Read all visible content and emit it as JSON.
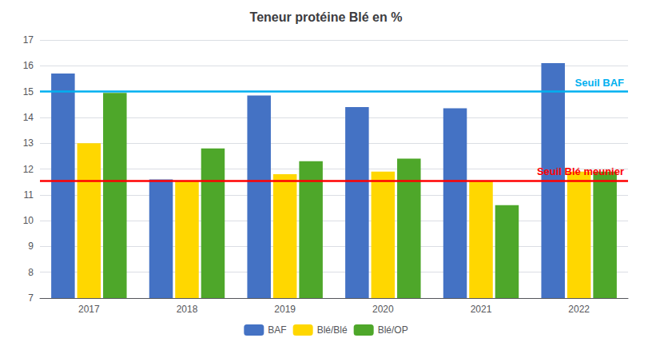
{
  "chart_data": {
    "type": "bar",
    "title": "Teneur protéine Blé en %",
    "categories": [
      "2017",
      "2018",
      "2019",
      "2020",
      "2021",
      "2022"
    ],
    "series": [
      {
        "name": "BAF",
        "color": "#4472C4",
        "values": [
          15.7,
          11.6,
          14.85,
          14.4,
          14.35,
          16.1
        ]
      },
      {
        "name": "Blé/Blé",
        "color": "#FFD700",
        "values": [
          13.0,
          11.55,
          11.8,
          11.9,
          11.55,
          11.9
        ]
      },
      {
        "name": "Blé/OP",
        "color": "#4EA72A",
        "values": [
          14.95,
          12.8,
          12.3,
          12.4,
          10.6,
          11.9
        ]
      }
    ],
    "hlines": [
      {
        "y": 15.0,
        "label": "Seuil BAF",
        "color": "#00B0F0"
      },
      {
        "y": 11.55,
        "label": "Seuil Blé meunier",
        "color": "#FF0000"
      }
    ],
    "ylim": [
      7,
      17
    ],
    "yticks": [
      7,
      8,
      9,
      10,
      11,
      12,
      13,
      14,
      15,
      16,
      17
    ],
    "grid": true,
    "legend": "bottom"
  }
}
